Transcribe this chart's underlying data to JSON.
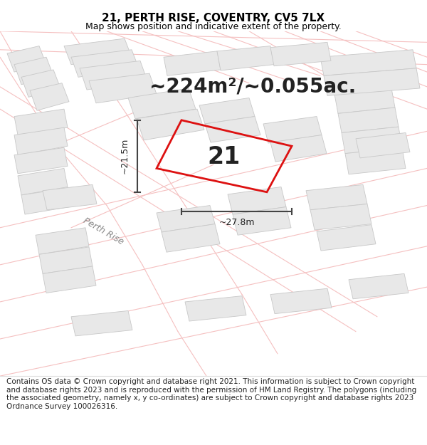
{
  "title": "21, PERTH RISE, COVENTRY, CV5 7LX",
  "subtitle": "Map shows position and indicative extent of the property.",
  "area_text": "~224m²/~0.055ac.",
  "width_label": "~27.8m",
  "height_label": "~21.5m",
  "label": "21",
  "footer": "Contains OS data © Crown copyright and database right 2021. This information is subject to Crown copyright and database rights 2023 and is reproduced with the permission of HM Land Registry. The polygons (including the associated geometry, namely x, y co-ordinates) are subject to Crown copyright and database rights 2023 Ordnance Survey 100026316.",
  "bg_color": "#ffffff",
  "map_bg": "#ffffff",
  "road_color": "#f5c0c0",
  "plot_color": "#dd1111",
  "building_fill": "#e8e8e8",
  "building_stroke": "#c8c8c8",
  "title_fontsize": 11,
  "subtitle_fontsize": 9,
  "area_fontsize": 20,
  "label_fontsize": 24,
  "footer_fontsize": 7.5,
  "road_lw": 0.8,
  "plot_lw": 2.0
}
